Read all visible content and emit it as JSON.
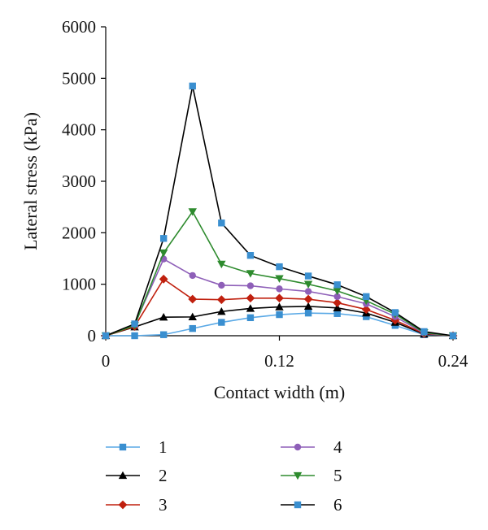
{
  "chart_data": {
    "type": "line",
    "title": "",
    "xlabel": "Contact width (m)",
    "ylabel": "Lateral stress (kPa)",
    "xlim": [
      0,
      0.24
    ],
    "ylim": [
      0,
      6000
    ],
    "xticks": [
      0,
      0.12,
      0.24
    ],
    "xtick_labels": [
      "0",
      "0.12",
      "0.24"
    ],
    "yticks": [
      0,
      1000,
      2000,
      3000,
      4000,
      5000,
      6000
    ],
    "ytick_labels": [
      "0",
      "1000",
      "2000",
      "3000",
      "4000",
      "5000",
      "6000"
    ],
    "grid": false,
    "legend_position": "bottom",
    "x": [
      0,
      0.02,
      0.04,
      0.06,
      0.08,
      0.1,
      0.12,
      0.14,
      0.16,
      0.18,
      0.2,
      0.22,
      0.24
    ],
    "series": [
      {
        "name": "1",
        "color": "#3a8fd0",
        "line_color": "#5aa9e6",
        "marker": "square",
        "values": [
          0,
          0,
          20,
          140,
          260,
          350,
          410,
          440,
          430,
          370,
          200,
          20,
          0
        ]
      },
      {
        "name": "2",
        "color": "#000000",
        "line_color": "#000000",
        "marker": "triangle-up",
        "values": [
          0,
          170,
          360,
          365,
          470,
          530,
          560,
          570,
          540,
          440,
          260,
          30,
          0
        ]
      },
      {
        "name": "3",
        "color": "#c0200e",
        "line_color": "#c0200e",
        "marker": "diamond",
        "values": [
          0,
          180,
          1100,
          710,
          700,
          730,
          730,
          710,
          640,
          510,
          300,
          40,
          0
        ]
      },
      {
        "name": "4",
        "color": "#8e5fb8",
        "line_color": "#8e5fb8",
        "marker": "circle",
        "values": [
          0,
          220,
          1490,
          1170,
          980,
          970,
          910,
          860,
          760,
          620,
          370,
          50,
          0
        ]
      },
      {
        "name": "5",
        "color": "#2e8b2e",
        "line_color": "#2e8b2e",
        "marker": "triangle-down",
        "values": [
          0,
          200,
          1610,
          2410,
          1390,
          1210,
          1110,
          1000,
          870,
          680,
          420,
          60,
          0
        ]
      },
      {
        "name": "6",
        "color": "#3a8fd0",
        "line_color": "#000000",
        "marker": "square",
        "values": [
          0,
          230,
          1890,
          4850,
          2190,
          1560,
          1340,
          1160,
          990,
          760,
          450,
          80,
          0
        ]
      }
    ]
  }
}
